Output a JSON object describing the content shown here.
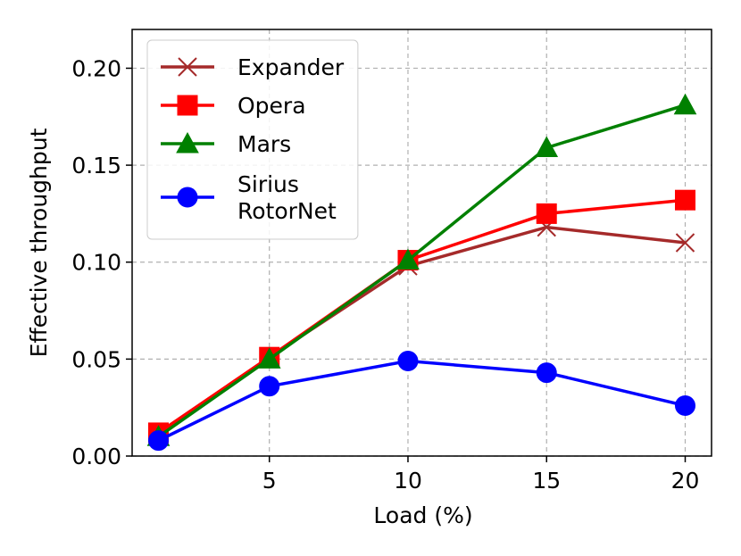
{
  "chart_data": {
    "type": "line",
    "xlabel": "Load (%)",
    "ylabel": "Effective throughput",
    "x": [
      1,
      5,
      10,
      15,
      20
    ],
    "series": [
      {
        "name": "Expander",
        "color": "#a52a2a",
        "marker": "x",
        "values": [
          0.011,
          0.051,
          0.098,
          0.118,
          0.11
        ]
      },
      {
        "name": "Opera",
        "color": "#ff0000",
        "marker": "square",
        "values": [
          0.012,
          0.051,
          0.101,
          0.125,
          0.132
        ]
      },
      {
        "name": "Mars",
        "color": "#008000",
        "marker": "triangle",
        "values": [
          0.01,
          0.05,
          0.101,
          0.159,
          0.181
        ]
      },
      {
        "name": "Sirius\nRotorNet",
        "color": "#0000ff",
        "marker": "circle",
        "values": [
          0.008,
          0.036,
          0.049,
          0.043,
          0.026
        ]
      }
    ],
    "xlim": [
      0.05,
      20.95
    ],
    "xticks": [
      5,
      10,
      15,
      20
    ],
    "ylim": [
      0,
      0.22
    ],
    "yticks": [
      {
        "value": 0,
        "label": "0.00"
      },
      {
        "value": 0.05,
        "label": "0.05"
      },
      {
        "value": 0.1,
        "label": "0.10"
      },
      {
        "value": 0.15,
        "label": "0.15"
      },
      {
        "value": 0.2,
        "label": "0.20"
      }
    ],
    "grid": true,
    "legend": "upper left"
  }
}
